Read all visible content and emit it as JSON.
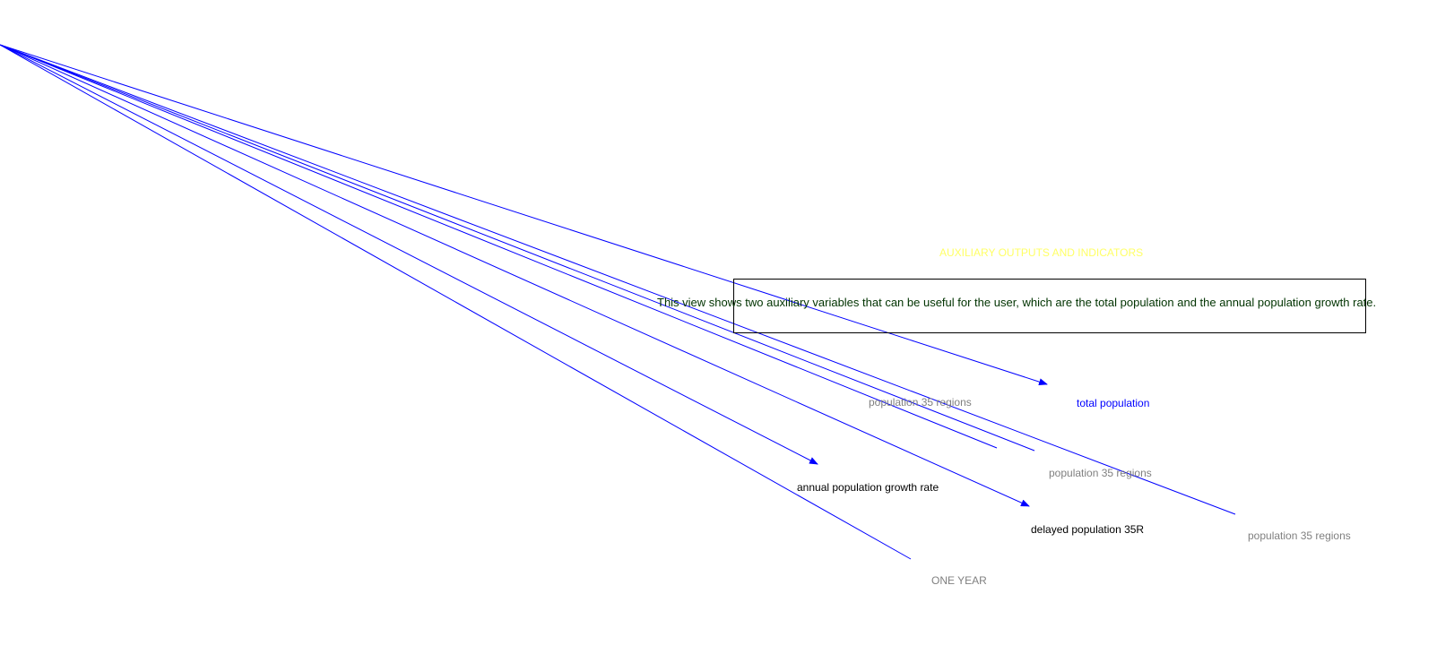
{
  "section_title": "AUXILIARY OUTPUTS AND INDICATORS",
  "note": "This view shows two auxiliary variables that can be useful for the user, which are the total population and the annual population growth rate.",
  "variables": {
    "total_population": "total population",
    "annual_growth_rate": "annual population growth rate",
    "delayed_population": "delayed population 35R",
    "shadow_population_1": "population 35 regions",
    "shadow_population_2": "population 35 regions",
    "shadow_population_3": "population 35 regions",
    "shadow_one_year": "ONE YEAR"
  },
  "colors": {
    "arrow": "#0000ff",
    "section_title": "#ffff66",
    "note_text": "#003300",
    "shadow_variable": "#808080",
    "variable": "#000000",
    "highlight_variable": "#0000ff"
  }
}
